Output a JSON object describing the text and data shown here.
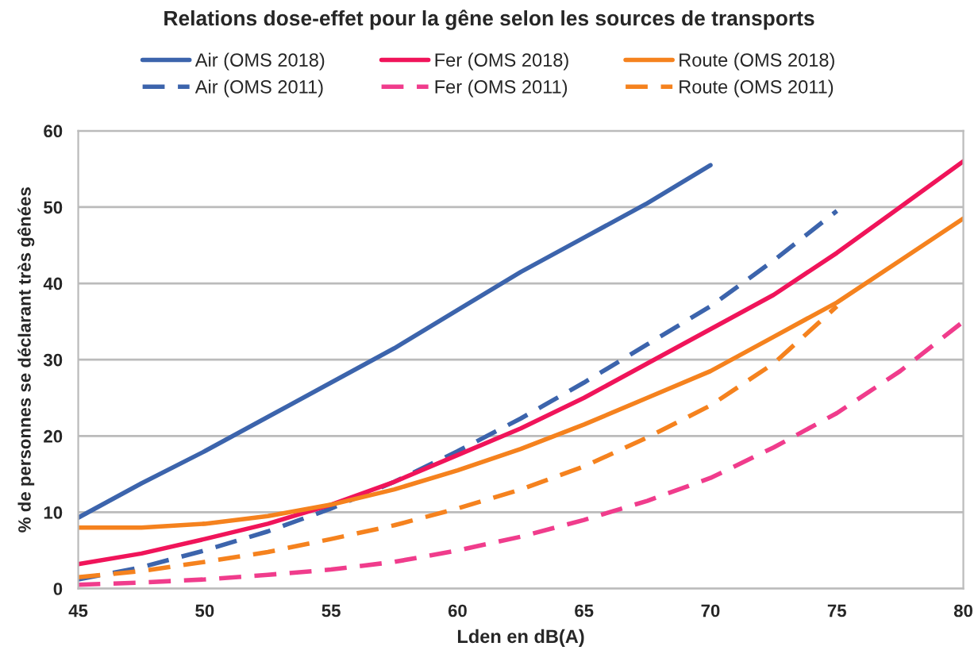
{
  "chart_data": {
    "type": "line",
    "title": "Relations dose-effet pour la gêne selon les sources de transports",
    "xlabel": "Lden en dB(A)",
    "ylabel": "% de personnes se déclarant très gênées",
    "xlim": [
      45,
      80
    ],
    "xticks": [
      45,
      50,
      55,
      60,
      65,
      70,
      75,
      80
    ],
    "ylim": [
      0,
      60
    ],
    "yticks": [
      0,
      10,
      20,
      30,
      40,
      50,
      60
    ],
    "grid": "y",
    "legend": "top",
    "series": [
      {
        "name": "Air (OMS 2018)",
        "color": "#3c64ac",
        "line_style": "solid",
        "x": [
          45,
          47.5,
          50,
          52.5,
          55,
          57.5,
          60,
          62.5,
          65,
          67.5,
          70
        ],
        "values": [
          9.3,
          13.8,
          18,
          22.5,
          27,
          31.5,
          36.5,
          41.5,
          46,
          50.5,
          55.5
        ]
      },
      {
        "name": "Air (OMS 2011)",
        "color": "#3c64ac",
        "line_style": "dashed",
        "x": [
          45,
          47.5,
          50,
          52.5,
          55,
          57.5,
          60,
          62.5,
          65,
          67.5,
          70,
          72.5,
          75
        ],
        "values": [
          1.2,
          2.8,
          5,
          7.5,
          10.5,
          14,
          18,
          22.3,
          27,
          32,
          37,
          43,
          49.5
        ]
      },
      {
        "name": "Fer (OMS 2018)",
        "color": "#f0145a",
        "line_style": "solid",
        "x": [
          45,
          47.5,
          50,
          52.5,
          55,
          57.5,
          60,
          62.5,
          65,
          67.5,
          70,
          72.5,
          75,
          77.5,
          80
        ],
        "values": [
          3.2,
          4.6,
          6.5,
          8.5,
          11,
          14,
          17.5,
          21,
          25,
          29.5,
          34,
          38.5,
          44,
          50,
          56
        ]
      },
      {
        "name": "Fer (OMS 2011)",
        "color": "#f03c8c",
        "line_style": "dashed",
        "x": [
          45,
          47.5,
          50,
          52.5,
          55,
          57.5,
          60,
          62.5,
          65,
          67.5,
          70,
          72.5,
          75,
          77.5,
          80
        ],
        "values": [
          0.5,
          0.8,
          1.2,
          1.8,
          2.5,
          3.5,
          5,
          6.8,
          9,
          11.5,
          14.5,
          18.5,
          23,
          28.5,
          35
        ]
      },
      {
        "name": "Route (OMS 2018)",
        "color": "#f5821e",
        "line_style": "solid",
        "x": [
          45,
          47.5,
          50,
          52.5,
          55,
          57.5,
          60,
          62.5,
          65,
          67.5,
          70,
          72.5,
          75,
          77.5,
          80
        ],
        "values": [
          8,
          8,
          8.5,
          9.5,
          11,
          13,
          15.5,
          18.3,
          21.5,
          25,
          28.5,
          33,
          37.5,
          43,
          48.5
        ]
      },
      {
        "name": "Route (OMS 2011)",
        "color": "#f5821e",
        "line_style": "dashed",
        "x": [
          45,
          47.5,
          50,
          52.5,
          55,
          57.5,
          60,
          62.5,
          65,
          67.5,
          70,
          72.5,
          75
        ],
        "values": [
          1.5,
          2.3,
          3.5,
          4.8,
          6.5,
          8.3,
          10.5,
          13,
          16,
          19.8,
          24,
          29.5,
          37
        ]
      }
    ]
  }
}
